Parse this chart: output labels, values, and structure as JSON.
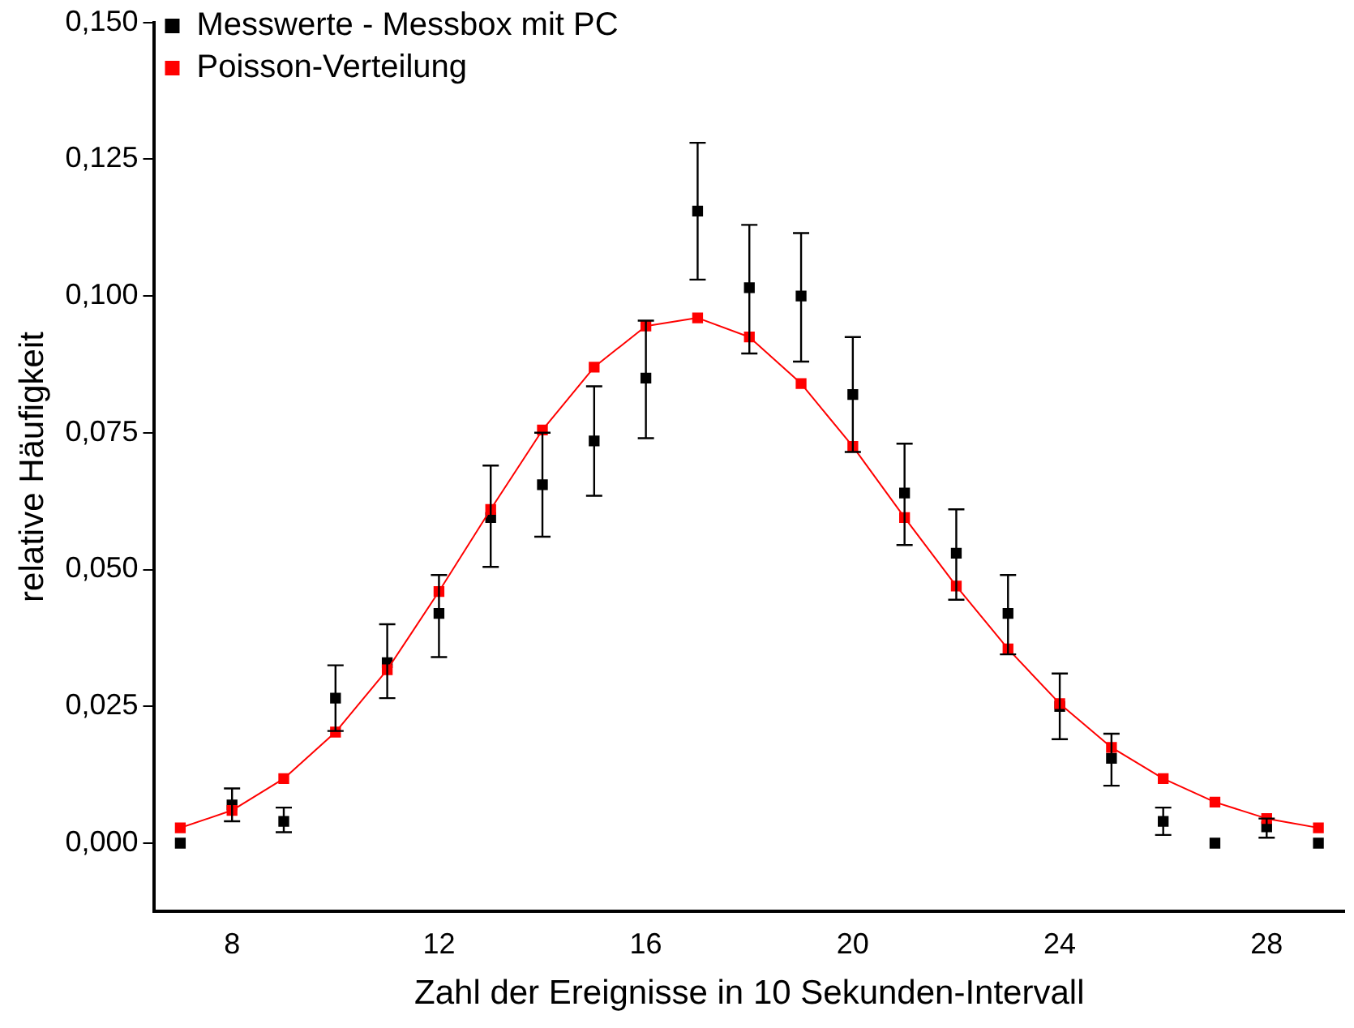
{
  "chart_data": {
    "type": "scatter",
    "xlabel": "Zahl der Ereignisse in 10 Sekunden-Intervall",
    "ylabel": "relative Häufigkeit",
    "x": [
      7,
      8,
      9,
      10,
      11,
      12,
      13,
      14,
      15,
      16,
      17,
      18,
      19,
      20,
      21,
      22,
      23,
      24,
      25,
      26,
      27,
      28,
      29
    ],
    "series": [
      {
        "name": "Messwerte - Messbox mit PC",
        "color": "#000000",
        "marker": "square",
        "values": [
          0,
          0.007,
          0.004,
          0.0265,
          0.033,
          0.042,
          0.0595,
          0.0655,
          0.0735,
          0.085,
          0.1155,
          0.1015,
          0.1,
          0.082,
          0.064,
          0.053,
          0.042,
          0.025,
          0.0155,
          0.004,
          0,
          0.003,
          0
        ],
        "errors": [
          null,
          [
            0.004,
            0.01
          ],
          [
            0.002,
            0.0065
          ],
          [
            0.0205,
            0.0325
          ],
          [
            0.0265,
            0.04
          ],
          [
            0.034,
            0.049
          ],
          [
            0.0505,
            0.069
          ],
          [
            0.056,
            0.075
          ],
          [
            0.0635,
            0.0835
          ],
          [
            0.074,
            0.0955
          ],
          [
            0.103,
            0.128
          ],
          [
            0.0895,
            0.113
          ],
          [
            0.088,
            0.1115
          ],
          [
            0.0715,
            0.0925
          ],
          [
            0.0545,
            0.073
          ],
          [
            0.0445,
            0.061
          ],
          [
            0.0345,
            0.049
          ],
          [
            0.019,
            0.031
          ],
          [
            0.0105,
            0.02
          ],
          [
            0.0015,
            0.0065
          ],
          null,
          [
            0.001,
            0.0045
          ],
          null
        ]
      },
      {
        "name": "Poisson-Verteilung",
        "type": "line",
        "color": "#ff0000",
        "marker": "square",
        "line_style": "solid",
        "values": [
          0.0028,
          0.006,
          0.0118,
          0.0203,
          0.0317,
          0.046,
          0.061,
          0.0755,
          0.087,
          0.0945,
          0.096,
          0.0925,
          0.084,
          0.0725,
          0.0595,
          0.047,
          0.0355,
          0.0255,
          0.0175,
          0.0118,
          0.0075,
          0.0045,
          0.0028
        ]
      }
    ],
    "xlim": [
      6.5,
      29.5
    ],
    "xticks": [
      8,
      12,
      16,
      20,
      24,
      28
    ],
    "ylim": [
      -0.0125,
      0.15
    ],
    "yticks": [
      {
        "value": 0,
        "label": "0,000"
      },
      {
        "value": 0.025,
        "label": "0,025"
      },
      {
        "value": 0.05,
        "label": "0,050"
      },
      {
        "value": 0.075,
        "label": "0,075"
      },
      {
        "value": 0.1,
        "label": "0,100"
      },
      {
        "value": 0.125,
        "label": "0,125"
      },
      {
        "value": 0.15,
        "label": "0,150"
      }
    ],
    "grid": false,
    "legend": "top left"
  }
}
